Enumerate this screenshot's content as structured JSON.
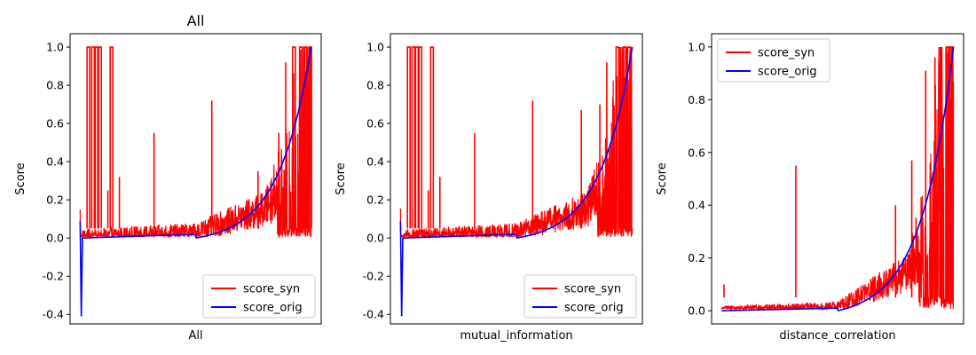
{
  "figure": {
    "background": "#ffffff",
    "syn_color": "#ff0000",
    "orig_color": "#0000ff"
  },
  "chart_data": [
    {
      "type": "line",
      "title": "All",
      "xlabel": "All",
      "ylabel": "Score",
      "ylim": [
        -0.45,
        1.07
      ],
      "y_ticks": [
        "-0.4",
        "-0.2",
        "0.0",
        "0.2",
        "0.4",
        "0.6",
        "0.8",
        "1.0"
      ],
      "x_ticks": "hidden",
      "grid": false,
      "legend_position": "lower-right",
      "series": [
        {
          "name": "score_syn",
          "color": "#ff0000",
          "shape": "noisy-fluctuation",
          "noise_floor": 0.05,
          "spikes_to_1_fraction": [
            0.03,
            0.05,
            0.065,
            0.08,
            0.13,
            0.92,
            0.95,
            0.97,
            0.99
          ],
          "notable_peaks": [
            {
              "fraction": 0.12,
              "value": 0.25
            },
            {
              "fraction": 0.17,
              "value": 0.32
            },
            {
              "fraction": 0.32,
              "value": 0.55
            },
            {
              "fraction": 0.57,
              "value": 0.72
            },
            {
              "fraction": 0.77,
              "value": 0.35
            },
            {
              "fraction": 0.86,
              "value": 0.55
            },
            {
              "fraction": 0.89,
              "value": 0.92
            }
          ],
          "values_start": 0.1,
          "values_end": 1.0
        },
        {
          "name": "score_orig",
          "color": "#0000ff",
          "shape": "exponential-rise",
          "points": [
            {
              "fraction": 0.0,
              "value": 0.09
            },
            {
              "fraction": 0.005,
              "value": -0.41
            },
            {
              "fraction": 0.01,
              "value": 0.0
            },
            {
              "fraction": 0.5,
              "value": 0.02
            },
            {
              "fraction": 0.8,
              "value": 0.12
            },
            {
              "fraction": 0.9,
              "value": 0.3
            },
            {
              "fraction": 0.96,
              "value": 0.7
            },
            {
              "fraction": 1.0,
              "value": 1.0
            }
          ]
        }
      ]
    },
    {
      "type": "line",
      "title": "",
      "xlabel": "mutual_information",
      "ylabel": "Score",
      "ylim": [
        -0.45,
        1.07
      ],
      "y_ticks": [
        "-0.4",
        "-0.2",
        "0.0",
        "0.2",
        "0.4",
        "0.6",
        "0.8",
        "1.0"
      ],
      "x_ticks": "hidden",
      "grid": false,
      "legend_position": "lower-right",
      "series": [
        {
          "name": "score_syn",
          "color": "#ff0000",
          "shape": "noisy-fluctuation",
          "noise_floor": 0.05,
          "spikes_to_1_fraction": [
            0.03,
            0.05,
            0.065,
            0.08,
            0.13,
            0.93,
            0.96,
            0.98
          ],
          "notable_peaks": [
            {
              "fraction": 0.12,
              "value": 0.25
            },
            {
              "fraction": 0.17,
              "value": 0.32
            },
            {
              "fraction": 0.32,
              "value": 0.55
            },
            {
              "fraction": 0.57,
              "value": 0.72
            },
            {
              "fraction": 0.78,
              "value": 0.67
            },
            {
              "fraction": 0.86,
              "value": 0.7
            },
            {
              "fraction": 0.89,
              "value": 0.92
            }
          ],
          "values_start": 0.1,
          "values_end": 1.0
        },
        {
          "name": "score_orig",
          "color": "#0000ff",
          "shape": "exponential-rise",
          "points": [
            {
              "fraction": 0.0,
              "value": 0.09
            },
            {
              "fraction": 0.005,
              "value": -0.41
            },
            {
              "fraction": 0.01,
              "value": 0.0
            },
            {
              "fraction": 0.5,
              "value": 0.02
            },
            {
              "fraction": 0.8,
              "value": 0.12
            },
            {
              "fraction": 0.9,
              "value": 0.3
            },
            {
              "fraction": 0.96,
              "value": 0.7
            },
            {
              "fraction": 1.0,
              "value": 1.0
            }
          ]
        }
      ]
    },
    {
      "type": "line",
      "title": "",
      "xlabel": "distance_correlation",
      "ylabel": "Score",
      "ylim": [
        -0.05,
        1.05
      ],
      "y_ticks": [
        "0.0",
        "0.2",
        "0.4",
        "0.6",
        "0.8",
        "1.0"
      ],
      "x_ticks": "hidden",
      "grid": false,
      "legend_position": "upper-left",
      "series": [
        {
          "name": "score_syn",
          "color": "#ff0000",
          "shape": "noisy-fluctuation",
          "noise_floor": 0.02,
          "spikes_to_1_fraction": [
            0.97,
            0.985
          ],
          "notable_peaks": [
            {
              "fraction": 0.01,
              "value": 0.1
            },
            {
              "fraction": 0.32,
              "value": 0.55
            },
            {
              "fraction": 0.75,
              "value": 0.4
            },
            {
              "fraction": 0.82,
              "value": 0.57
            },
            {
              "fraction": 0.88,
              "value": 0.91
            },
            {
              "fraction": 0.92,
              "value": 0.96
            },
            {
              "fraction": 0.94,
              "value": 0.77
            }
          ],
          "values_start": 0.0,
          "values_end": 1.0
        },
        {
          "name": "score_orig",
          "color": "#0000ff",
          "shape": "exponential-rise",
          "points": [
            {
              "fraction": 0.0,
              "value": 0.0
            },
            {
              "fraction": 0.5,
              "value": 0.01
            },
            {
              "fraction": 0.8,
              "value": 0.12
            },
            {
              "fraction": 0.9,
              "value": 0.3
            },
            {
              "fraction": 0.96,
              "value": 0.7
            },
            {
              "fraction": 1.0,
              "value": 1.0
            }
          ]
        }
      ]
    }
  ]
}
